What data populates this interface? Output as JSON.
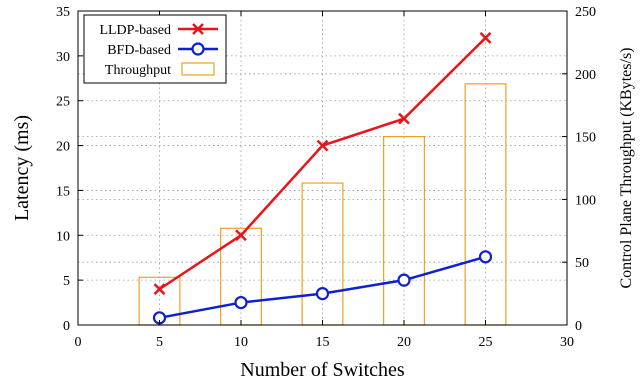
{
  "chart_data": {
    "type": "bar+line",
    "xlabel": "Number of Switches",
    "ylabel": "Latency (ms)",
    "y2label": "Control Plane Throughput (KBytes/s)",
    "xlim": [
      0,
      30
    ],
    "ylim": [
      0,
      35
    ],
    "y2lim": [
      0,
      250
    ],
    "xticks": [
      0,
      5,
      10,
      15,
      20,
      25,
      30
    ],
    "yticks": [
      0,
      5,
      10,
      15,
      20,
      25,
      30,
      35
    ],
    "y2ticks": [
      0,
      50,
      100,
      150,
      200,
      250
    ],
    "grid": true,
    "legend_position": "top-left",
    "x": [
      5,
      10,
      15,
      20,
      25
    ],
    "series": [
      {
        "name": "LLDP-based",
        "type": "line",
        "axis": "left",
        "marker": "x",
        "color": "#e8141a",
        "values": [
          4.0,
          10.0,
          20.0,
          23.0,
          32.0
        ]
      },
      {
        "name": "BFD-based",
        "type": "line",
        "axis": "left",
        "marker": "circle",
        "color": "#1020d0",
        "values": [
          0.8,
          2.5,
          3.5,
          5.0,
          7.6
        ]
      },
      {
        "name": "Throughput",
        "type": "bar",
        "axis": "right",
        "color": "#f0a020",
        "values": [
          38,
          77,
          113,
          150,
          192
        ]
      }
    ]
  }
}
